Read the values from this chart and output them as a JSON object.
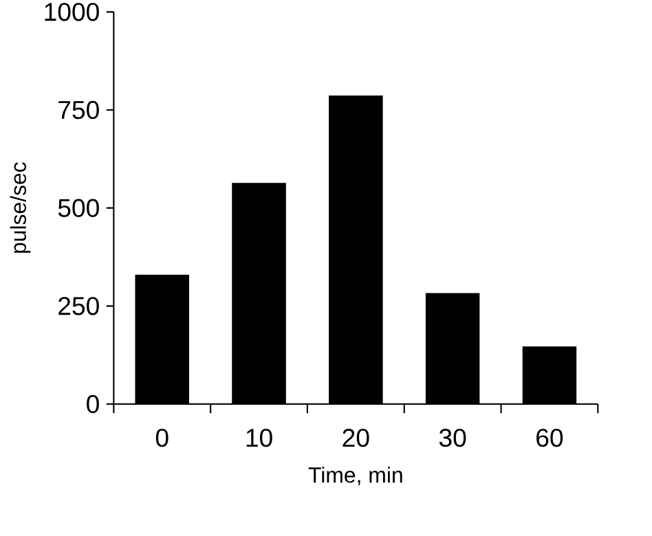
{
  "chart_data": {
    "type": "bar",
    "xlabel": "Time, min",
    "ylabel": "pulse/sec",
    "categories": [
      "0",
      "10",
      "20",
      "30",
      "60"
    ],
    "values": [
      329,
      563,
      786,
      282,
      146
    ],
    "color": "#000000",
    "ylim": [
      0,
      1000
    ],
    "yticks": [
      0,
      250,
      500,
      750,
      1000
    ],
    "grid": false
  }
}
